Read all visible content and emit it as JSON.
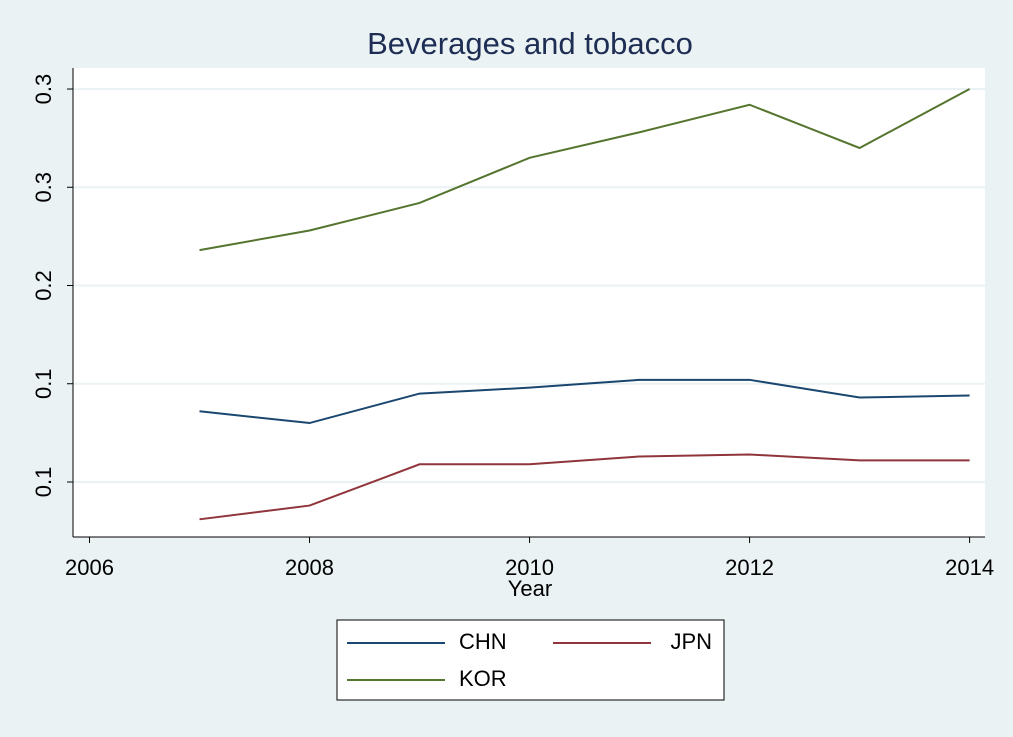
{
  "chart_data": {
    "type": "line",
    "title": "Beverages and tobacco",
    "xlabel": "Year",
    "x": [
      2007,
      2008,
      2009,
      2010,
      2011,
      2012,
      2013,
      2014
    ],
    "xlim": [
      2005.85,
      2014.14
    ],
    "xticks": [
      2006,
      2008,
      2010,
      2012,
      2014
    ],
    "ylim": [
      0.072,
      0.3107
    ],
    "yticks": [
      0.1,
      {
        "value": 0.15,
        "label": "0.1"
      },
      0.2,
      {
        "value": 0.25,
        "label": "0.3"
      },
      0.3
    ],
    "grid": true,
    "series": [
      {
        "name": "CHN",
        "color": "#1a476f",
        "values": [
          0.136,
          0.13,
          0.145,
          0.148,
          0.152,
          0.152,
          0.143,
          0.144
        ]
      },
      {
        "name": "JPN",
        "color": "#90353b",
        "values": [
          0.081,
          0.088,
          0.109,
          0.109,
          0.113,
          0.114,
          0.111,
          0.111
        ]
      },
      {
        "name": "KOR",
        "color": "#55752f",
        "values": [
          0.218,
          0.228,
          0.242,
          0.265,
          0.278,
          0.292,
          0.27,
          0.3
        ]
      }
    ]
  }
}
